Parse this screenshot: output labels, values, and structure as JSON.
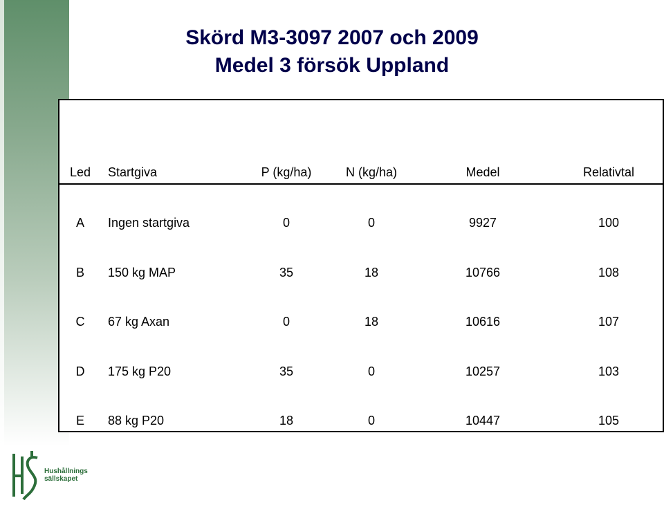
{
  "title": {
    "line1": "Skörd M3-3097 2007 och 2009",
    "line2": "Medel 3 försök Uppland"
  },
  "table": {
    "headers": [
      "Led",
      "Startgiva",
      "P (kg/ha)",
      "N (kg/ha)",
      "Medel",
      "Relativtal"
    ],
    "rows": [
      [
        "A",
        "Ingen startgiva",
        "0",
        "0",
        "9927",
        "100"
      ],
      [
        "B",
        "150 kg MAP",
        "35",
        "18",
        "10766",
        "108"
      ],
      [
        "C",
        "67 kg Axan",
        "0",
        "18",
        "10616",
        "107"
      ],
      [
        "D",
        "175 kg P20",
        "35",
        "0",
        "10257",
        "103"
      ],
      [
        "E",
        "88 kg P20",
        "18",
        "0",
        "10447",
        "105"
      ]
    ]
  },
  "logo": {
    "line1": "Hushållnings",
    "line2": "sällskapet"
  },
  "colors": {
    "title": "#00004a",
    "band": "#5f8f6a",
    "logo": "#2c6e3a"
  }
}
